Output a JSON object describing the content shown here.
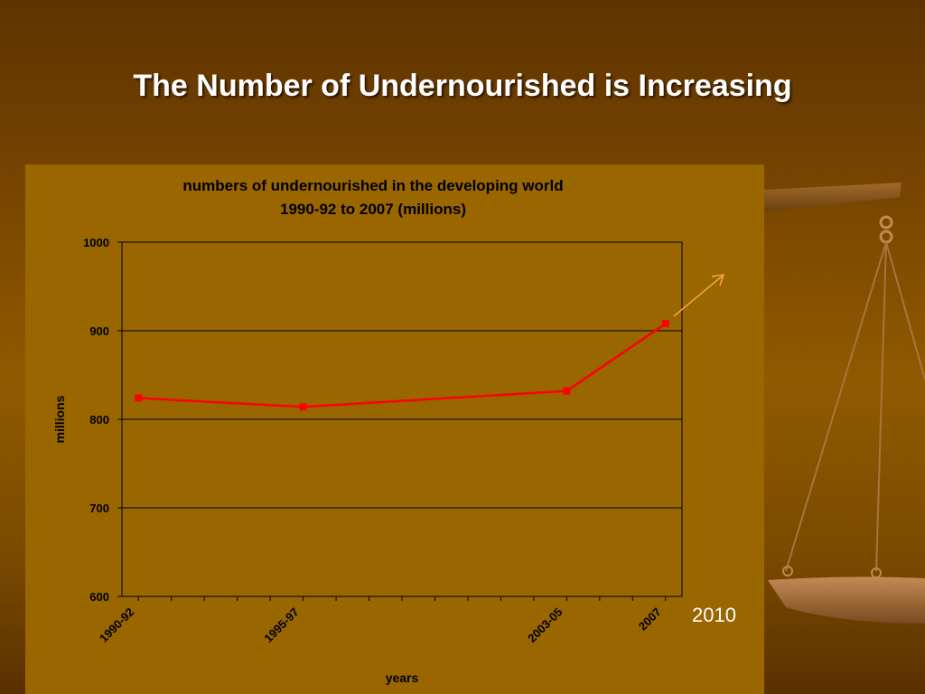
{
  "slide": {
    "title": "The Number of Undernourished is Increasing",
    "annotation": "2010"
  },
  "colors": {
    "panel": "#996600",
    "series": "#ff0000",
    "arrow": "#ffa24a",
    "text": "#000000"
  },
  "chart_data": {
    "type": "line",
    "title": "numbers of undernourished in the developing world",
    "subtitle": "1990-92 to 2007 (millions)",
    "xlabel": "years",
    "ylabel": "millions",
    "ylim": [
      600,
      1000
    ],
    "yticks": [
      600,
      700,
      800,
      900,
      1000
    ],
    "x": [
      "1990-92",
      "1995-97",
      "2003-05",
      "2007"
    ],
    "x_years": [
      1991,
      1996,
      2004,
      2007
    ],
    "xlim": [
      1990.5,
      2007.5
    ],
    "series": [
      {
        "values": [
          824,
          814,
          832,
          908
        ],
        "color": "#ff0000"
      }
    ],
    "grid": true,
    "legend": "none"
  }
}
